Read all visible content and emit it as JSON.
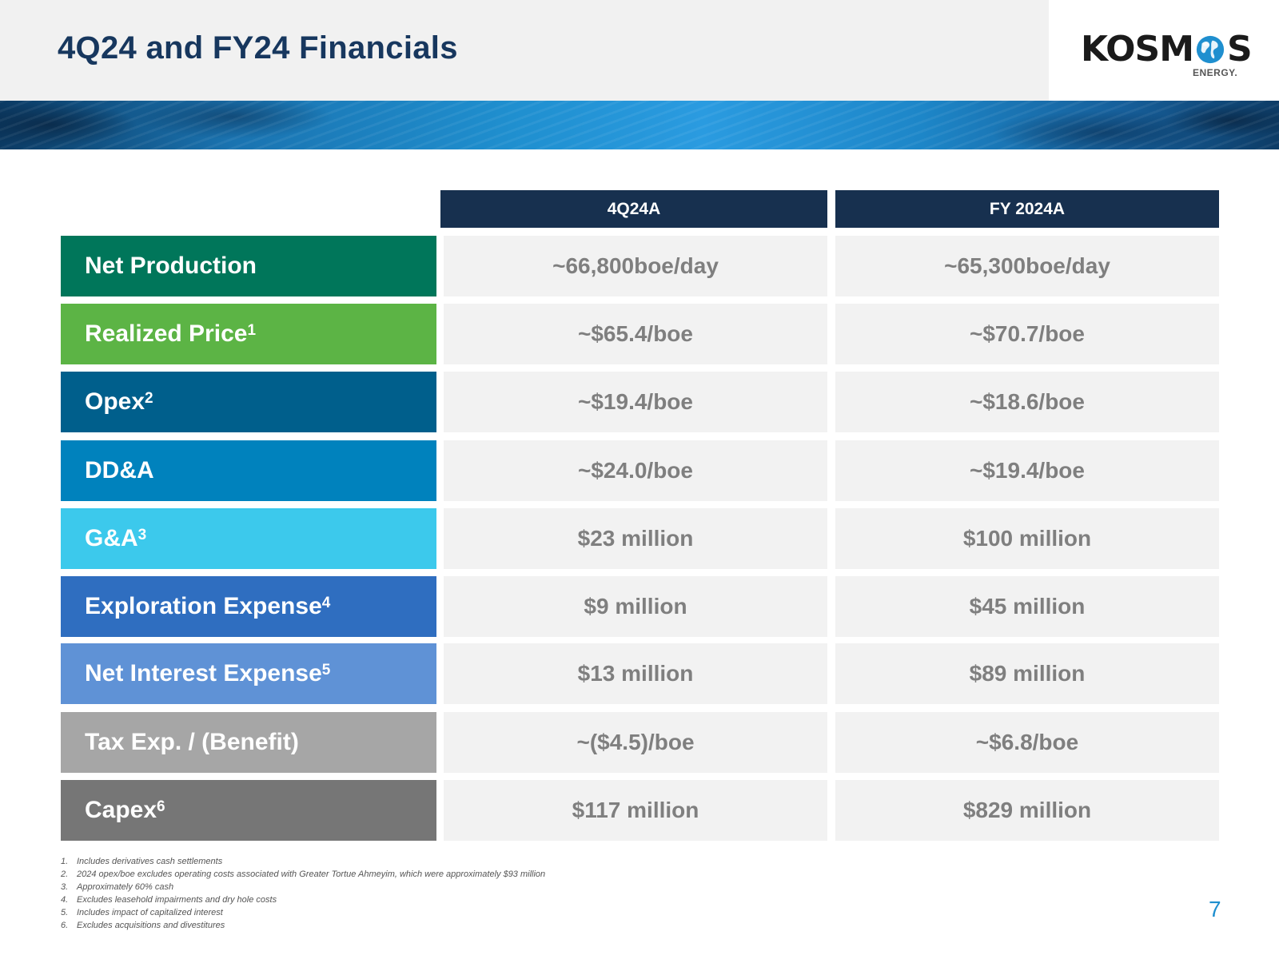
{
  "slide": {
    "title": "4Q24 and FY24 Financials",
    "page_number": "7"
  },
  "logo": {
    "word_left": "KOSM",
    "word_right": "S",
    "subtitle": "ENERGY."
  },
  "table": {
    "columns": [
      "4Q24A",
      "FY 2024A"
    ],
    "rows": [
      {
        "label": "Net Production",
        "sup": "",
        "color": "#00765a",
        "q4": "~66,800boe/day",
        "fy": "~65,300boe/day"
      },
      {
        "label": "Realized Price",
        "sup": "1",
        "color": "#5cb445",
        "q4": "~$65.4/boe",
        "fy": "~$70.7/boe"
      },
      {
        "label": "Opex",
        "sup": "2",
        "color": "#005f8c",
        "q4": "~$19.4/boe",
        "fy": "~$18.6/boe"
      },
      {
        "label": "DD&A",
        "sup": "",
        "color": "#0082bd",
        "q4": "~$24.0/boe",
        "fy": "~$19.4/boe"
      },
      {
        "label": "G&A",
        "sup": "3",
        "color": "#3cc9ec",
        "q4": "$23 million",
        "fy": "$100 million"
      },
      {
        "label": "Exploration Expense",
        "sup": "4",
        "color": "#2f6ec0",
        "q4": "$9 million",
        "fy": "$45 million"
      },
      {
        "label": "Net Interest Expense",
        "sup": "5",
        "color": "#5f92d6",
        "q4": "$13 million",
        "fy": "$89 million"
      },
      {
        "label": "Tax Exp. / (Benefit)",
        "sup": "",
        "color": "#a6a6a6",
        "q4": "~($4.5)/boe",
        "fy": "~$6.8/boe"
      },
      {
        "label": "Capex",
        "sup": "6",
        "color": "#767676",
        "q4": "$117 million",
        "fy": "$829 million"
      }
    ]
  },
  "footnotes": [
    {
      "num": "1.",
      "text": "Includes derivatives cash settlements"
    },
    {
      "num": "2.",
      "text": "2024 opex/boe excludes operating costs associated with Greater Tortue Ahmeyim, which were approximately $93 million"
    },
    {
      "num": "3.",
      "text": "Approximately 60% cash"
    },
    {
      "num": "4.",
      "text": "Excludes leasehold impairments and dry hole costs"
    },
    {
      "num": "5.",
      "text": "Includes impact of capitalized interest"
    },
    {
      "num": "6.",
      "text": "Excludes acquisitions and divestitures"
    }
  ]
}
